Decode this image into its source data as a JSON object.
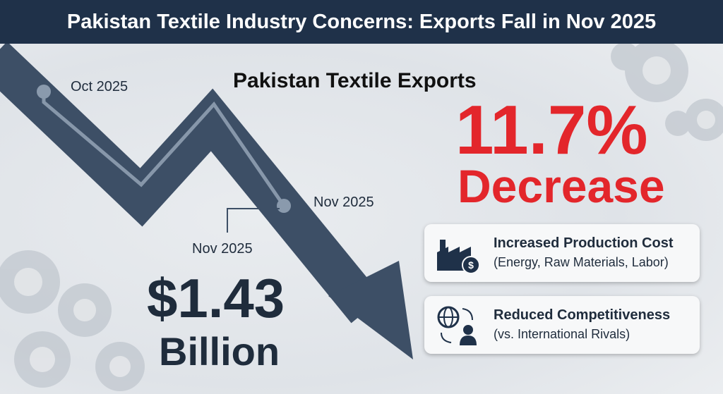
{
  "header": {
    "title": "Pakistan Textile Industry Concerns: Exports Fall in Nov 2025"
  },
  "chart_title": "Pakistan Textile Exports",
  "timeline": {
    "start_label": "Oct 2025",
    "end_label": "Nov 2025"
  },
  "value_callout": {
    "period": "Nov 2025",
    "amount": "$1.43",
    "unit": "Billion"
  },
  "change": {
    "percent": "11.7%",
    "direction": "Decrease"
  },
  "factors": [
    {
      "title": "Increased Production Cost",
      "detail": "(Energy, Raw Materials, Labor)"
    },
    {
      "title": "Reduced Competitiveness",
      "detail": "(vs. International Rivals)"
    }
  ]
}
